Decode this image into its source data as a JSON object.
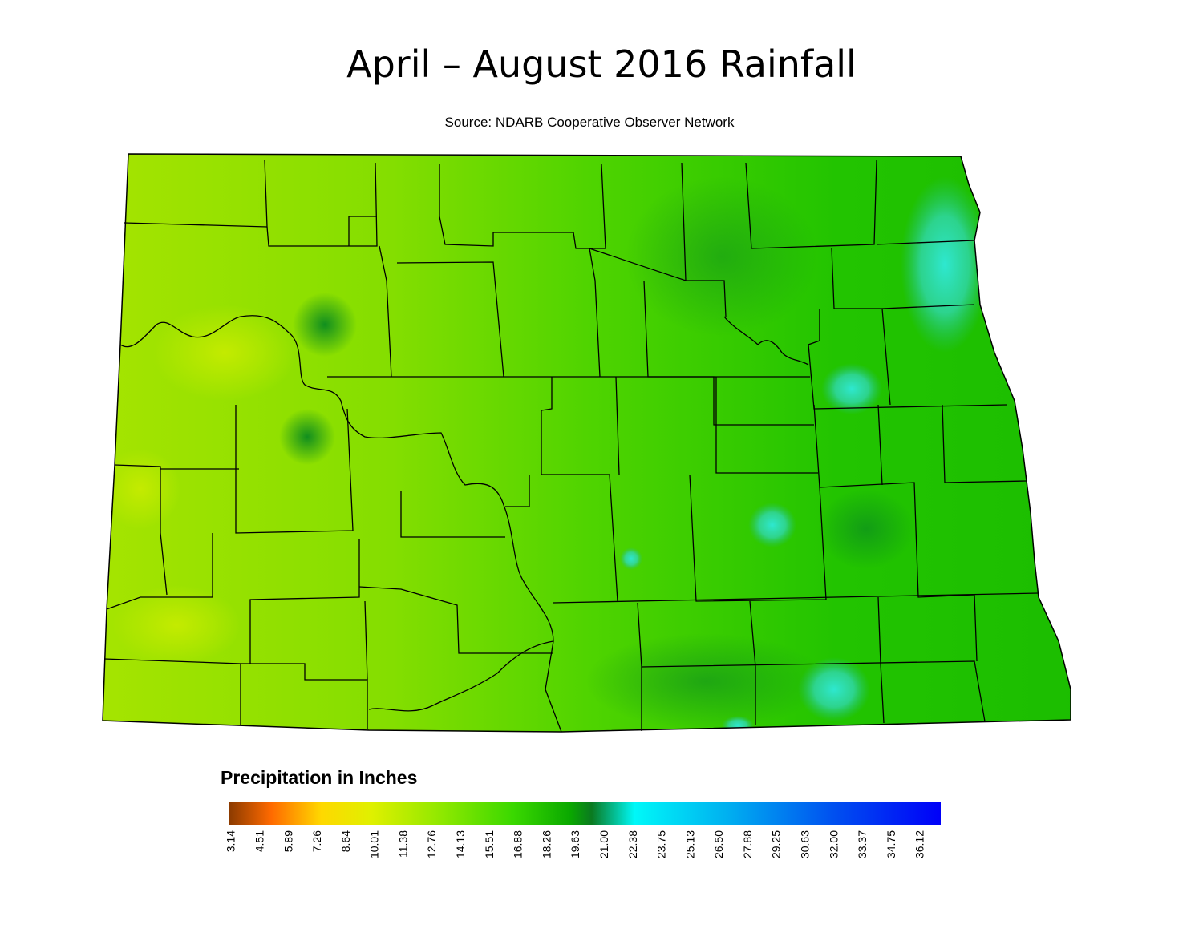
{
  "header": {
    "title": "April – August 2016 Rainfall",
    "subtitle": "Source: NDARB Cooperative Observer Network"
  },
  "legend": {
    "title": "Precipitation in Inches",
    "ticks": [
      "3.14",
      "4.51",
      "5.89",
      "7.26",
      "8.64",
      "10.01",
      "11.38",
      "12.76",
      "14.13",
      "15.51",
      "16.88",
      "18.26",
      "19.63",
      "21.00",
      "22.38",
      "23.75",
      "25.13",
      "26.50",
      "27.88",
      "29.25",
      "30.63",
      "32.00",
      "33.37",
      "34.75",
      "36.12"
    ]
  }
}
